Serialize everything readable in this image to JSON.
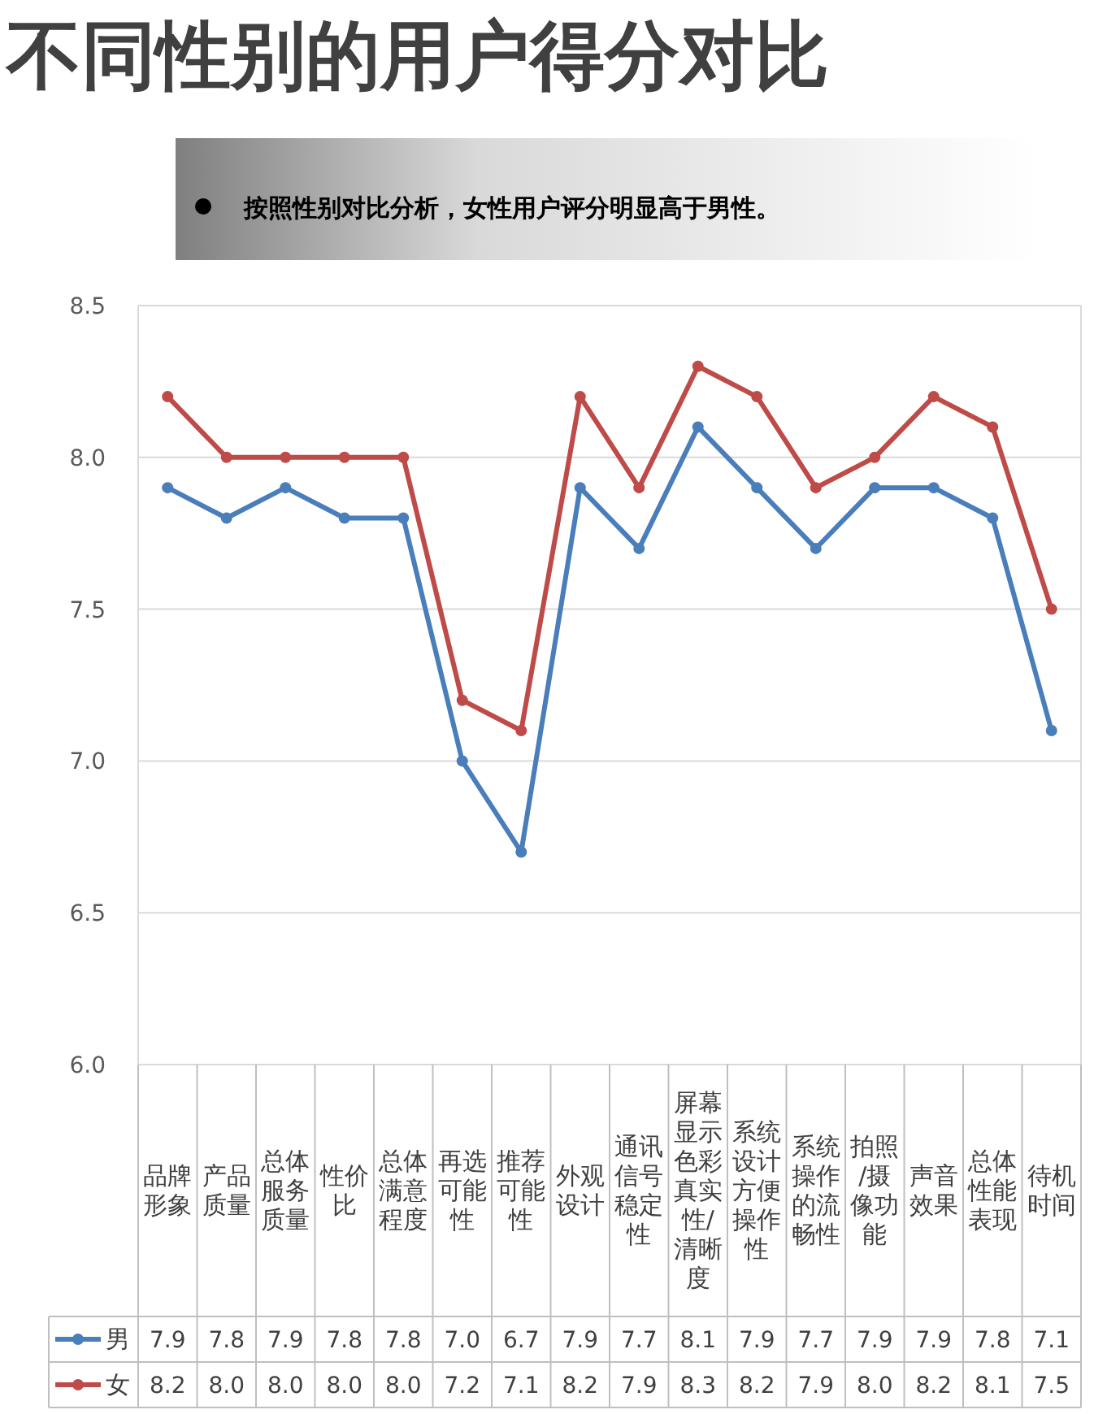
{
  "chart_data": {
    "type": "line",
    "title": "不同性别的用户得分对比",
    "subtitle": "按照性别对比分析，女性用户评分明显高于男性。",
    "categories": [
      "品牌形象",
      "产品质量",
      "总体服务质量",
      "性价比",
      "总体满意程度",
      "再选可能性",
      "推荐可能性",
      "外观设计",
      "通讯信号稳定性",
      "屏幕显示色彩真实性/清晰度",
      "系统设计方便操作性",
      "系统操作的流畅性",
      "拍照/摄像功能",
      "声音效果",
      "总体性能表现",
      "待机时间"
    ],
    "series": [
      {
        "name": "男",
        "color": "#4a7ebb",
        "values": [
          7.9,
          7.8,
          7.9,
          7.8,
          7.8,
          7.0,
          6.7,
          7.9,
          7.7,
          8.1,
          7.9,
          7.7,
          7.9,
          7.9,
          7.8,
          7.1
        ],
        "value_labels": [
          "7.9",
          "7.8",
          "7.9",
          "7.8",
          "7.8",
          "7.0",
          "6.7",
          "7.9",
          "7.7",
          "8.1",
          "7.9",
          "7.7",
          "7.9",
          "7.9",
          "7.8",
          "7.1"
        ]
      },
      {
        "name": "女",
        "color": "#be4b48",
        "values": [
          8.2,
          8.0,
          8.0,
          8.0,
          8.0,
          7.2,
          7.1,
          8.2,
          7.9,
          8.3,
          8.2,
          7.9,
          8.0,
          8.2,
          8.1,
          7.5
        ],
        "value_labels": [
          "8.2",
          "8.0",
          "8.0",
          "8.0",
          "8.0",
          "7.2",
          "7.1",
          "8.2",
          "7.9",
          "8.3",
          "8.2",
          "7.9",
          "8.0",
          "8.2",
          "8.1",
          "7.5"
        ]
      }
    ],
    "ylim": [
      6.0,
      8.5
    ],
    "yticks": [
      {
        "value": 6,
        "label": "6.0"
      },
      {
        "value": 6.5,
        "label": "6.5"
      },
      {
        "value": 7,
        "label": "7.0"
      },
      {
        "value": 7.5,
        "label": "7.5"
      },
      {
        "value": 8,
        "label": "8.0"
      },
      {
        "value": 8.5,
        "label": "8.5"
      }
    ],
    "grid": "y",
    "marker": "circle",
    "line_style": "solid",
    "legend": "bottom"
  }
}
